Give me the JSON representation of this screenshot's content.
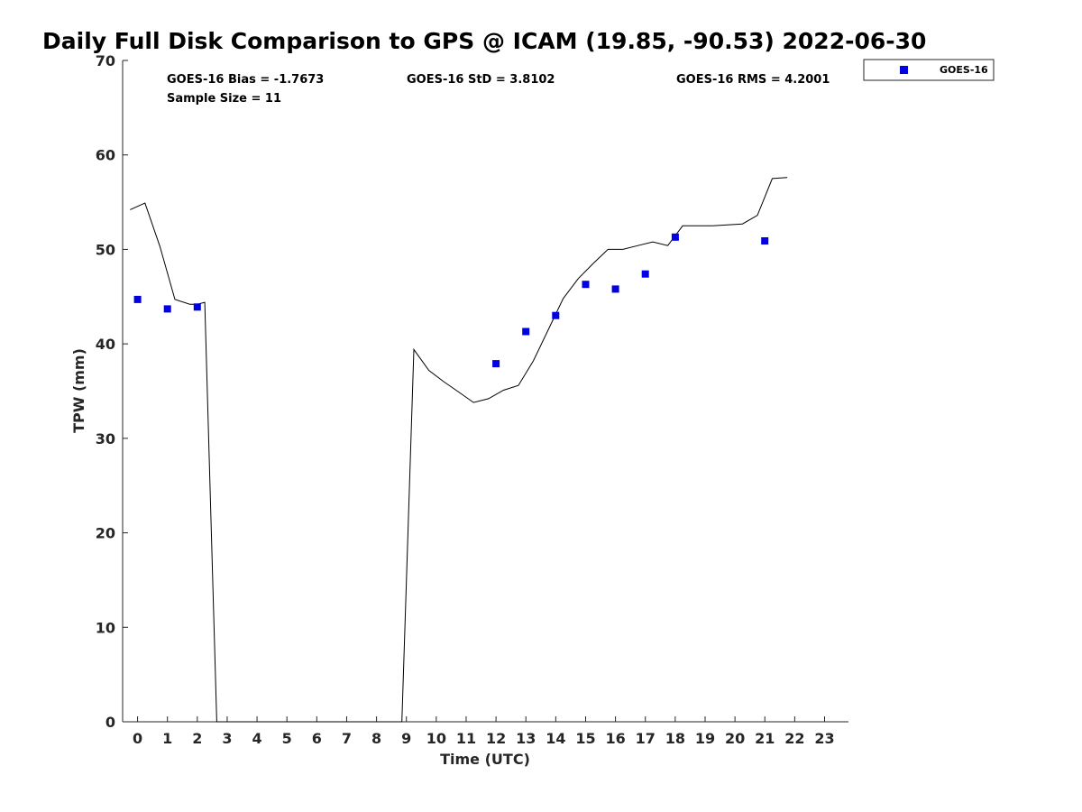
{
  "chart_data": {
    "type": "line",
    "title": "Daily Full Disk Comparison to GPS @ ICAM (19.85, -90.53) 2022-06-30",
    "xlabel": "Time (UTC)",
    "ylabel": "TPW (mm)",
    "xlim": [
      -0.5,
      23.8
    ],
    "ylim": [
      0,
      70
    ],
    "xticks": [
      0,
      1,
      2,
      3,
      4,
      5,
      6,
      7,
      8,
      9,
      10,
      11,
      12,
      13,
      14,
      15,
      16,
      17,
      18,
      19,
      20,
      21,
      22,
      23
    ],
    "yticks": [
      0,
      10,
      20,
      30,
      40,
      50,
      60,
      70
    ],
    "grid": false,
    "legend_position": "top-right outside",
    "stats": {
      "bias": "GOES-16 Bias = -1.7673",
      "std": "GOES-16 StD = 3.8102",
      "rms": "GOES-16 RMS = 4.2001",
      "sample_size": "Sample Size = 11"
    },
    "series": [
      {
        "kind": "line",
        "color": "#000000",
        "x": [
          -0.25,
          0.25,
          0.75,
          1.25,
          1.75,
          2.0,
          2.25,
          2.65,
          8.85,
          9.25,
          9.75,
          10.25,
          10.75,
          11.25,
          11.75,
          12.25,
          12.75,
          13.25,
          13.75,
          14.25,
          14.75,
          15.25,
          15.75,
          16.25,
          16.75,
          17.25,
          17.75,
          18.25,
          18.75,
          19.25,
          19.75,
          20.25,
          20.75,
          21.25,
          21.75
        ],
        "y": [
          54.2,
          54.9,
          50.3,
          44.7,
          44.2,
          44.2,
          44.4,
          0,
          0,
          39.4,
          37.2,
          36.0,
          34.9,
          33.8,
          34.2,
          35.1,
          35.6,
          38.2,
          41.5,
          44.8,
          46.9,
          48.5,
          50.0,
          50.0,
          50.4,
          50.8,
          50.4,
          52.5,
          52.5,
          52.5,
          52.6,
          52.7,
          53.6,
          57.5,
          57.6
        ]
      },
      {
        "kind": "scatter",
        "name": "GOES-16",
        "color": "#0000e0",
        "x": [
          0.0,
          1.0,
          2.0,
          12.0,
          13.0,
          14.0,
          15.0,
          16.0,
          17.0,
          18.0,
          21.0
        ],
        "y": [
          44.7,
          43.7,
          43.9,
          37.9,
          41.3,
          43.0,
          46.3,
          45.8,
          47.4,
          51.3,
          50.9
        ]
      }
    ]
  }
}
